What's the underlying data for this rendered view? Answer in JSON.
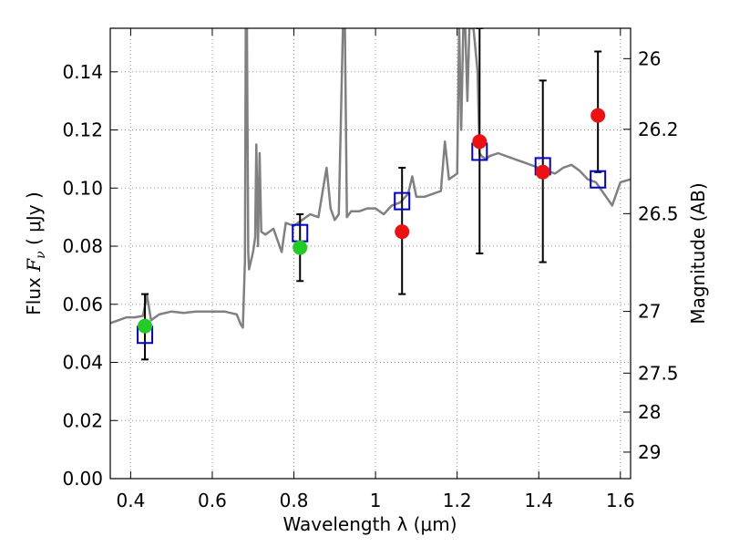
{
  "chart_data": {
    "type": "scatter",
    "xlabel": "Wavelength  λ (μm)",
    "ylabel": "Flux  F_ν ( μJy )",
    "y2label": "Magnitude (AB)",
    "xlim": [
      0.35,
      1.625
    ],
    "ylim": [
      0.0,
      0.155
    ],
    "grid": true,
    "x_ticks": [
      0.4,
      0.6,
      0.8,
      1.0,
      1.2,
      1.4,
      1.6
    ],
    "x_tick_labels": [
      "0.4",
      "0.6",
      "0.8",
      "1",
      "1.2",
      "1.4",
      "1.6"
    ],
    "y_ticks": [
      0.0,
      0.02,
      0.04,
      0.06,
      0.08,
      0.1,
      0.12,
      0.14
    ],
    "y_tick_labels": [
      "0.00",
      "0.02",
      "0.04",
      "0.06",
      "0.08",
      "0.10",
      "0.12",
      "0.14"
    ],
    "y2_ticks": [
      26,
      26.2,
      26.5,
      27,
      27.5,
      28,
      29
    ],
    "y2_tick_labels": [
      "26",
      "26.2",
      "26.5",
      "27",
      "27.5",
      "28",
      "29"
    ],
    "colors": {
      "model": "#808080",
      "model_photometry": "#0000cc",
      "hst_detections": "#22cc22",
      "ir_detections": "#ee1111",
      "error_bars": "#000000",
      "grid": "#999999"
    },
    "series": [
      {
        "kind": "model_spectrum",
        "x": [
          0.35,
          0.37,
          0.39,
          0.41,
          0.43,
          0.44,
          0.45,
          0.47,
          0.5,
          0.53,
          0.56,
          0.6,
          0.63,
          0.66,
          0.67,
          0.675,
          0.68,
          0.682,
          0.685,
          0.688,
          0.69,
          0.7,
          0.705,
          0.708,
          0.712,
          0.716,
          0.72,
          0.73,
          0.75,
          0.77,
          0.78,
          0.8,
          0.82,
          0.84,
          0.86,
          0.88,
          0.89,
          0.9,
          0.91,
          0.92,
          0.925,
          0.93,
          0.935,
          0.94,
          0.96,
          0.98,
          1.0,
          1.02,
          1.04,
          1.06,
          1.08,
          1.09,
          1.1,
          1.12,
          1.14,
          1.16,
          1.17,
          1.18,
          1.19,
          1.2,
          1.205,
          1.21,
          1.215,
          1.22,
          1.225,
          1.23,
          1.24,
          1.25,
          1.255,
          1.26,
          1.27,
          1.28,
          1.3,
          1.32,
          1.34,
          1.36,
          1.38,
          1.4,
          1.42,
          1.44,
          1.46,
          1.48,
          1.5,
          1.52,
          1.54,
          1.56,
          1.58,
          1.6,
          1.625
        ],
        "y": [
          0.0535,
          0.0545,
          0.0555,
          0.0555,
          0.056,
          0.063,
          0.0545,
          0.0565,
          0.0575,
          0.057,
          0.0575,
          0.0575,
          0.0575,
          0.0565,
          0.053,
          0.052,
          0.075,
          0.155,
          0.155,
          0.078,
          0.072,
          0.078,
          0.083,
          0.115,
          0.08,
          0.112,
          0.085,
          0.084,
          0.086,
          0.078,
          0.088,
          0.087,
          0.089,
          0.091,
          0.09,
          0.107,
          0.093,
          0.089,
          0.091,
          0.155,
          0.155,
          0.09,
          0.091,
          0.092,
          0.092,
          0.093,
          0.093,
          0.091,
          0.094,
          0.095,
          0.098,
          0.104,
          0.097,
          0.097,
          0.098,
          0.099,
          0.116,
          0.103,
          0.104,
          0.105,
          0.155,
          0.12,
          0.155,
          0.155,
          0.13,
          0.155,
          0.155,
          0.14,
          0.112,
          0.111,
          0.11,
          0.111,
          0.112,
          0.111,
          0.11,
          0.109,
          0.108,
          0.107,
          0.106,
          0.105,
          0.107,
          0.108,
          0.106,
          0.103,
          0.102,
          0.098,
          0.094,
          0.102,
          0.103
        ]
      },
      {
        "kind": "model_photometry",
        "x": [
          0.435,
          0.815,
          1.065,
          1.255,
          1.41,
          1.545
        ],
        "y": [
          0.0495,
          0.0845,
          0.0955,
          0.1125,
          0.1075,
          0.103
        ]
      },
      {
        "kind": "hst_detections",
        "x": [
          0.435,
          0.815
        ],
        "y": [
          0.0525,
          0.0795
        ],
        "yerr_low": [
          0.0115,
          0.0115
        ],
        "yerr_high": [
          0.011,
          0.0115
        ]
      },
      {
        "kind": "ir_detections",
        "x": [
          1.065,
          1.255,
          1.41,
          1.545
        ],
        "y": [
          0.085,
          0.116,
          0.1055,
          0.125
        ],
        "yerr_low": [
          0.0215,
          0.0385,
          0.031,
          0.0195
        ],
        "yerr_high": [
          0.022,
          0.039,
          0.0315,
          0.022
        ]
      }
    ]
  }
}
